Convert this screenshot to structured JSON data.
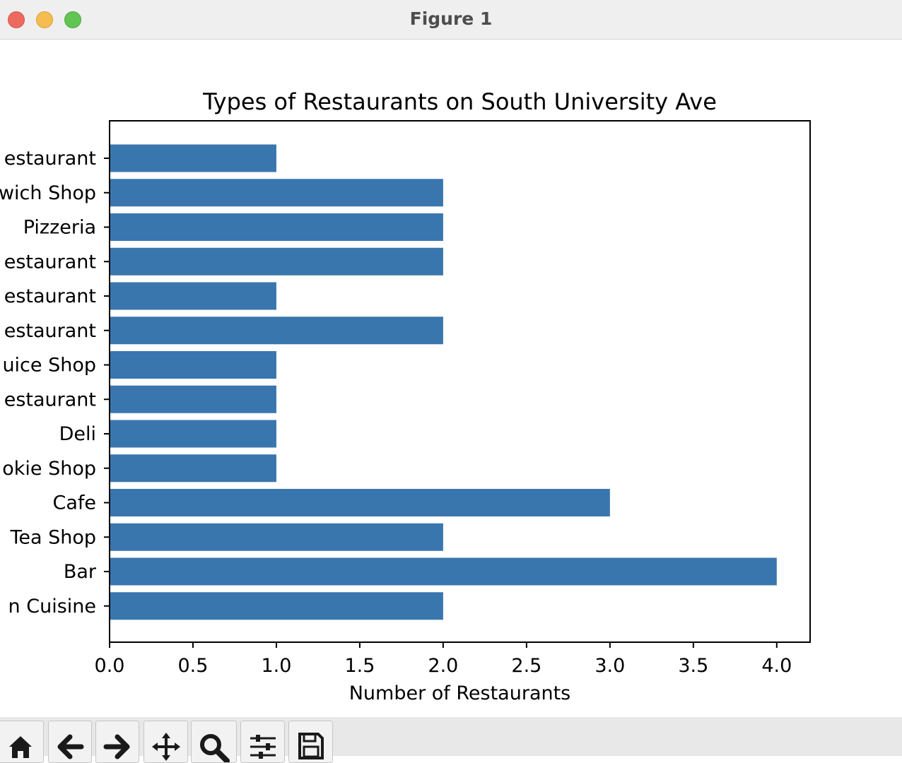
{
  "window": {
    "title": "Figure 1"
  },
  "chart_data": {
    "type": "bar",
    "orientation": "horizontal",
    "title": "Types of Restaurants on South University Ave",
    "xlabel": "Number of Restaurants",
    "ylabel": "",
    "xlim": [
      0,
      4.2
    ],
    "xticks": [
      "0.0",
      "0.5",
      "1.0",
      "1.5",
      "2.0",
      "2.5",
      "3.0",
      "3.5",
      "4.0"
    ],
    "categories_partially_visible": true,
    "categories": [
      "estaurant",
      "wich Shop",
      "Pizzeria",
      "estaurant",
      "estaurant",
      "estaurant",
      "uice Shop",
      "estaurant",
      "Deli",
      "okie Shop",
      "Cafe",
      "Tea Shop",
      "Bar",
      "n Cuisine"
    ],
    "values": [
      1,
      2,
      2,
      2,
      1,
      2,
      1,
      1,
      1,
      1,
      3,
      2,
      4,
      2
    ],
    "bar_color": "#3a76ae",
    "grid": false,
    "legend": "none"
  },
  "toolbar": {
    "buttons": [
      {
        "icon": "home-icon",
        "label": "Home"
      },
      {
        "icon": "back-arrow-icon",
        "label": "Back"
      },
      {
        "icon": "forward-arrow-icon",
        "label": "Forward"
      },
      {
        "icon": "pan-icon",
        "label": "Pan"
      },
      {
        "icon": "zoom-icon",
        "label": "Zoom"
      },
      {
        "icon": "subplots-icon",
        "label": "Configure subplots"
      },
      {
        "icon": "save-icon",
        "label": "Save"
      }
    ]
  }
}
